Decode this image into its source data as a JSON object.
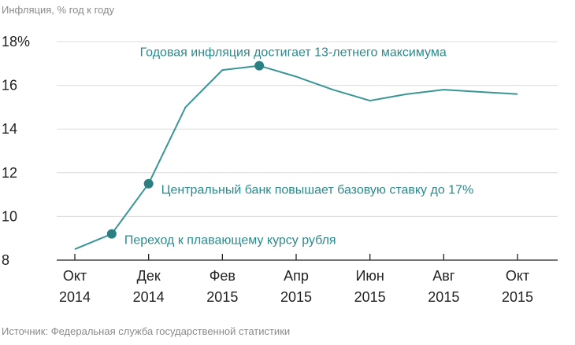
{
  "chart_data": {
    "type": "line",
    "subtitle": "Инфляция, % год к году",
    "source": "Источник: Федеральная служба государственной статистики",
    "x": [
      0,
      1,
      2,
      3,
      4,
      5,
      6,
      7,
      8,
      9,
      10,
      11,
      12
    ],
    "xticks": [
      {
        "x": 0,
        "line1": "Окт",
        "line2": "2014"
      },
      {
        "x": 2,
        "line1": "Дек",
        "line2": "2014"
      },
      {
        "x": 4,
        "line1": "Фев",
        "line2": "2015"
      },
      {
        "x": 6,
        "line1": "Апр",
        "line2": "2015"
      },
      {
        "x": 8,
        "line1": "Июн",
        "line2": "2015"
      },
      {
        "x": 10,
        "line1": "Авг",
        "line2": "2015"
      },
      {
        "x": 12,
        "line1": "Окт",
        "line2": "2015"
      }
    ],
    "yticks": [
      {
        "value": 8,
        "label": "8"
      },
      {
        "value": 10,
        "label": "10"
      },
      {
        "value": 12,
        "label": "12"
      },
      {
        "value": 14,
        "label": "14"
      },
      {
        "value": 16,
        "label": "16"
      },
      {
        "value": 18,
        "label": "18%"
      }
    ],
    "ylim": [
      8,
      18
    ],
    "xlim": [
      0,
      12
    ],
    "grid": true,
    "series": [
      {
        "values": [
          8.5,
          9.2,
          11.5,
          15.0,
          16.7,
          16.9,
          16.4,
          15.8,
          15.3,
          15.6,
          15.8,
          15.7,
          15.6
        ]
      }
    ],
    "annotations": [
      {
        "x": 1,
        "y": 9.2,
        "text": "Переход к плавающему курсу рубля",
        "position": "right"
      },
      {
        "x": 2,
        "y": 11.5,
        "text": "Центральный банк повышает базовую ставку до 17%",
        "position": "right"
      },
      {
        "x": 5,
        "y": 16.9,
        "text": "Годовая инфляция достигает 13-летнего максимума",
        "position": "above"
      }
    ],
    "colors": {
      "line": "#3a9596",
      "marker": "#2b7f80",
      "annotation": "#2b8a8c"
    }
  }
}
